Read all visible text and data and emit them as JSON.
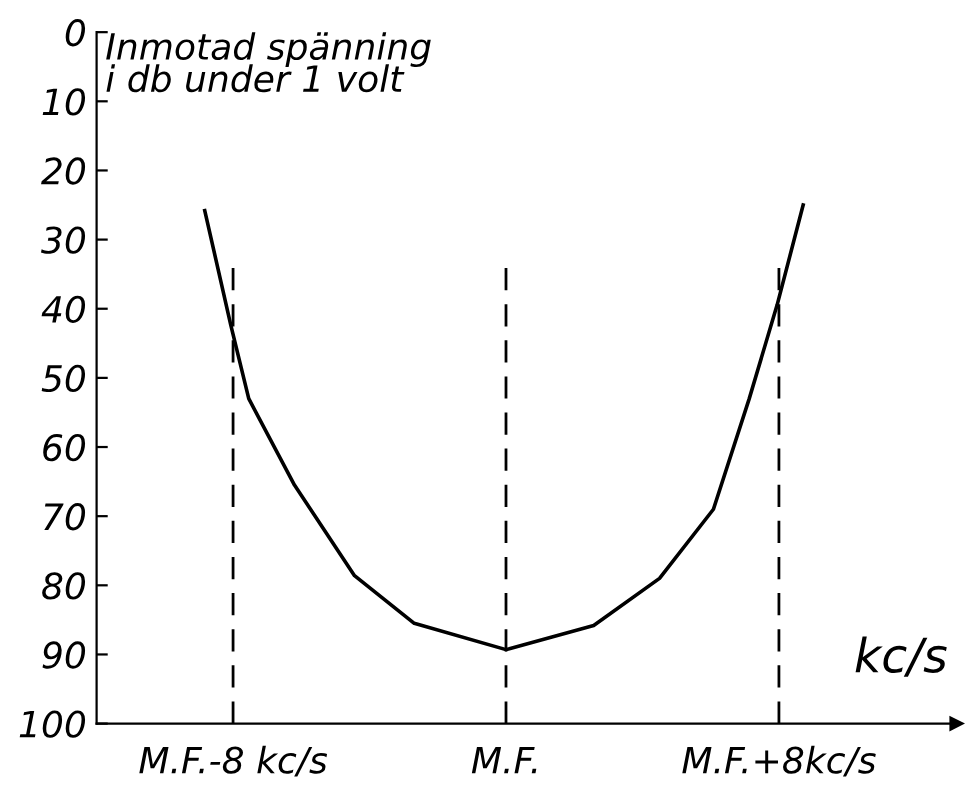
{
  "chart_data": {
    "type": "line",
    "ylabel": "Inmotad spänning\ni db under 1 volt",
    "xlabel": "kc/s",
    "x": [
      -8.83,
      -8.07,
      -7.54,
      -6.2,
      -4.44,
      -2.69,
      0,
      2.57,
      4.5,
      6.08,
      7.13,
      7.95,
      8.71
    ],
    "series": [
      {
        "color": "#000000",
        "values": [
          25.8,
          42.3,
          53,
          65.5,
          78.6,
          85.5,
          89.3,
          85.8,
          79,
          69,
          53,
          39.4,
          25
        ]
      }
    ],
    "xlim": [
      -12,
      13.2
    ],
    "ylim": [
      100,
      0
    ],
    "xticks": [
      {
        "value": -8,
        "label": "M.F.-8 kc/s"
      },
      {
        "value": 0,
        "label": "M.F."
      },
      {
        "value": 8,
        "label": "M.F.+8kc/s"
      }
    ],
    "yticks": [
      0,
      10,
      20,
      30,
      40,
      50,
      60,
      70,
      80,
      90,
      100
    ],
    "ref_lines": [
      {
        "axis": "x",
        "value": -8,
        "line_style": "dashed",
        "color": "#000000"
      },
      {
        "axis": "x",
        "value": 0,
        "line_style": "dashed",
        "color": "#000000"
      },
      {
        "axis": "x",
        "value": 8,
        "line_style": "dashed",
        "color": "#000000"
      }
    ],
    "grid": false,
    "legend": false,
    "marker": "none",
    "line_style": "solid"
  }
}
